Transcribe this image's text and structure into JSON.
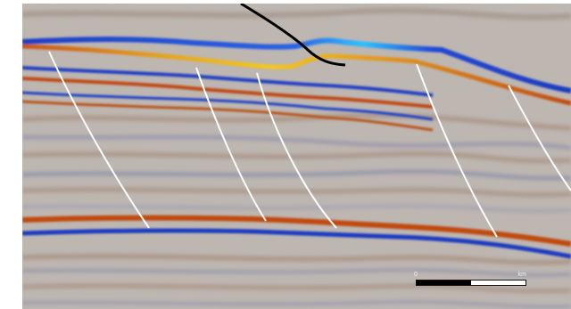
{
  "image": {
    "subject": "seismic-reflection-section",
    "colors": {
      "background_gray": "#bdb7b3",
      "trough_blue": "#1e3cc0",
      "bright_blue": "#29b6ff",
      "peak_orange": "#c24a10",
      "bright_yellow": "#f2c21a",
      "fault_white": "#ffffff",
      "well_black": "#000000"
    }
  },
  "scale_bar": {
    "min_label": "0",
    "max_label": "km"
  }
}
